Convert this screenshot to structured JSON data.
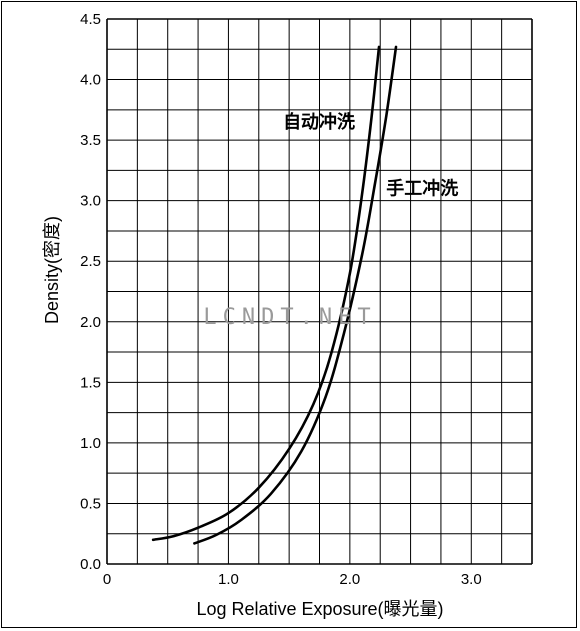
{
  "chart_data": {
    "type": "line",
    "title": "",
    "xlabel": "Log Relative Exposure(曝光量)",
    "ylabel": "Density(密度)",
    "xlim": [
      0,
      3.5
    ],
    "ylim": [
      0,
      4.5
    ],
    "x_ticks": [
      {
        "value": 0,
        "label": "0"
      },
      {
        "value": 1,
        "label": "1.0"
      },
      {
        "value": 2,
        "label": "2.0"
      },
      {
        "value": 3,
        "label": "3.0"
      }
    ],
    "y_ticks": [
      {
        "value": 0,
        "label": "0.0"
      },
      {
        "value": 0.5,
        "label": "0.5"
      },
      {
        "value": 1,
        "label": "1.0"
      },
      {
        "value": 1.5,
        "label": "1.5"
      },
      {
        "value": 2,
        "label": "2.0"
      },
      {
        "value": 2.5,
        "label": "2.5"
      },
      {
        "value": 3,
        "label": "3.0"
      },
      {
        "value": 3.5,
        "label": "3.5"
      },
      {
        "value": 4,
        "label": "4.0"
      },
      {
        "value": 4.5,
        "label": "4.5"
      }
    ],
    "grid": true,
    "grid_step_x": 0.25,
    "grid_step_y": 0.25,
    "series": [
      {
        "name": "自动冲洗",
        "x": [
          0.38,
          0.55,
          0.75,
          1.0,
          1.25,
          1.5,
          1.7,
          1.85,
          2.0,
          2.1,
          2.18,
          2.24
        ],
        "y": [
          0.2,
          0.23,
          0.3,
          0.42,
          0.63,
          0.95,
          1.32,
          1.75,
          2.4,
          3.05,
          3.7,
          4.27
        ]
      },
      {
        "name": "手工冲洗",
        "x": [
          0.72,
          0.9,
          1.1,
          1.35,
          1.6,
          1.8,
          1.95,
          2.1,
          2.2,
          2.3,
          2.38
        ],
        "y": [
          0.17,
          0.24,
          0.36,
          0.58,
          0.93,
          1.38,
          1.9,
          2.55,
          3.1,
          3.7,
          4.27
        ]
      }
    ],
    "annotations": [
      {
        "text": "自动冲洗",
        "x": 1.45,
        "y": 3.6
      },
      {
        "text": "手工冲洗",
        "x": 2.3,
        "y": 3.05
      }
    ]
  },
  "watermark": "LCNDT.NET"
}
